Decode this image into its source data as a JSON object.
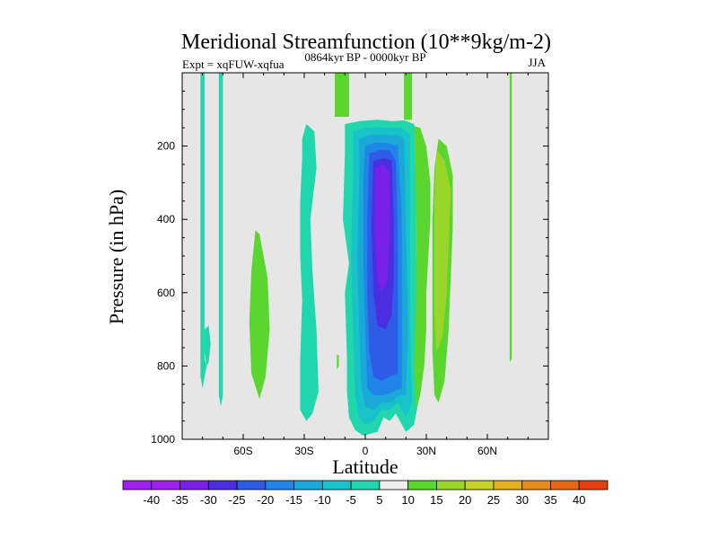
{
  "chart_data": {
    "type": "heatmap",
    "subtype": "filled-contour",
    "title": "Meridional Streamfunction (10**9kg/m-2)",
    "left_string": "Expt = xqFUW-xqfua",
    "center_string": "0864kyr BP - 0000kyr BP",
    "right_string": "JJA",
    "xlabel": "Latitude",
    "ylabel": "Pressure (in hPa)",
    "xlim": [
      -90,
      90
    ],
    "ylim": [
      1000,
      0
    ],
    "xticks": [
      -60,
      -30,
      0,
      30,
      60
    ],
    "xtick_labels": [
      "60S",
      "30S",
      "0",
      "30N",
      "60N"
    ],
    "yticks": [
      200,
      400,
      600,
      800,
      1000
    ],
    "ytick_labels": [
      "200",
      "400",
      "600",
      "800",
      "1000"
    ],
    "missing_color": "#e6e6e6",
    "colorbar": {
      "levels": [
        -40,
        -35,
        -30,
        -25,
        -20,
        -15,
        -10,
        -5,
        5,
        10,
        15,
        20,
        25,
        30,
        35,
        40
      ],
      "labels": [
        "-40",
        "-35",
        "-30",
        "-25",
        "-20",
        "-15",
        "-10",
        "-5",
        "5",
        "10",
        "15",
        "20",
        "25",
        "30",
        "35",
        "40"
      ],
      "colors": [
        "#a020f0",
        "#7b20e8",
        "#4a2ee0",
        "#2f5ce6",
        "#1f86e8",
        "#1aa8d8",
        "#17c3c8",
        "#1fd6ad",
        "#eeeeee",
        "#5ad62e",
        "#9ad62a",
        "#c8d32a",
        "#e0b020",
        "#e68a1a",
        "#e66618",
        "#e64012"
      ]
    },
    "regions": [
      {
        "name": "sh-polar-strip-a",
        "value": -7.5,
        "points": [
          [
            -81,
            0
          ],
          [
            -79,
            0
          ],
          [
            -79,
            780
          ],
          [
            -78,
            800
          ],
          [
            -79,
            830
          ],
          [
            -80,
            860
          ],
          [
            -81,
            830
          ]
        ]
      },
      {
        "name": "sh-polar-strip-a-lobe",
        "value": -7.5,
        "points": [
          [
            -79,
            700
          ],
          [
            -77,
            690
          ],
          [
            -76,
            740
          ],
          [
            -77,
            790
          ],
          [
            -78,
            800
          ],
          [
            -79,
            760
          ]
        ]
      },
      {
        "name": "sh-polar-strip-b",
        "value": -7.5,
        "points": [
          [
            -72,
            0
          ],
          [
            -70,
            0
          ],
          [
            -70,
            880
          ],
          [
            -71,
            910
          ],
          [
            -72,
            880
          ]
        ]
      },
      {
        "name": "sh-midlat-positive",
        "value": 7.5,
        "points": [
          [
            -54,
            430
          ],
          [
            -52,
            440
          ],
          [
            -48,
            560
          ],
          [
            -47,
            700
          ],
          [
            -49,
            830
          ],
          [
            -52,
            890
          ],
          [
            -56,
            820
          ],
          [
            -57,
            680
          ],
          [
            -56,
            540
          ]
        ]
      },
      {
        "name": "sh-subtropic-negative",
        "value": -7.5,
        "points": [
          [
            -29,
            140
          ],
          [
            -25,
            160
          ],
          [
            -24,
            260
          ],
          [
            -27,
            400
          ],
          [
            -26,
            540
          ],
          [
            -24,
            700
          ],
          [
            -23,
            870
          ],
          [
            -26,
            930
          ],
          [
            -29,
            950
          ],
          [
            -32,
            920
          ],
          [
            -32,
            780
          ],
          [
            -31,
            620
          ],
          [
            -32,
            500
          ],
          [
            -32,
            350
          ],
          [
            -31,
            230
          ],
          [
            -31,
            180
          ]
        ]
      },
      {
        "name": "tropic-positive-tiny",
        "value": 7.5,
        "points": [
          [
            -14,
            770
          ],
          [
            -13,
            770
          ],
          [
            -13,
            800
          ],
          [
            -14,
            810
          ]
        ]
      },
      {
        "name": "tropic-positive-top",
        "value": 7.5,
        "points": [
          [
            -15,
            0
          ],
          [
            -8,
            0
          ],
          [
            -8,
            120
          ],
          [
            -15,
            120
          ]
        ]
      },
      {
        "name": "hadley-cell-outer",
        "value": -7.5,
        "points": [
          [
            -10,
            140
          ],
          [
            -3,
            132
          ],
          [
            6,
            128
          ],
          [
            13,
            132
          ],
          [
            19,
            130
          ],
          [
            24,
            140
          ],
          [
            25,
            300
          ],
          [
            25,
            500
          ],
          [
            26,
            700
          ],
          [
            26,
            900
          ],
          [
            24,
            960
          ],
          [
            20,
            980
          ],
          [
            15,
            930
          ],
          [
            12,
            950
          ],
          [
            9,
            940
          ],
          [
            6,
            980
          ],
          [
            -1,
            990
          ],
          [
            -5,
            975
          ],
          [
            -8,
            940
          ],
          [
            -9,
            870
          ],
          [
            -9,
            780
          ],
          [
            -10,
            600
          ],
          [
            -8,
            520
          ],
          [
            -11,
            400
          ],
          [
            -10,
            220
          ]
        ]
      },
      {
        "name": "hadley-cell-12",
        "value": -12.5,
        "points": [
          [
            -6,
            160
          ],
          [
            -1,
            150
          ],
          [
            6,
            148
          ],
          [
            12,
            150
          ],
          [
            18,
            150
          ],
          [
            22,
            170
          ],
          [
            22,
            400
          ],
          [
            22,
            700
          ],
          [
            23,
            900
          ],
          [
            20,
            940
          ],
          [
            16,
            900
          ],
          [
            12,
            920
          ],
          [
            8,
            920
          ],
          [
            4,
            950
          ],
          [
            0,
            960
          ],
          [
            -3,
            940
          ],
          [
            -5,
            880
          ],
          [
            -6,
            700
          ],
          [
            -7,
            500
          ],
          [
            -6,
            300
          ]
        ]
      },
      {
        "name": "hadley-cell-17",
        "value": -17.5,
        "points": [
          [
            -3,
            180
          ],
          [
            2,
            170
          ],
          [
            8,
            168
          ],
          [
            14,
            170
          ],
          [
            19,
            178
          ],
          [
            20,
            400
          ],
          [
            21,
            700
          ],
          [
            20,
            880
          ],
          [
            17,
            880
          ],
          [
            12,
            900
          ],
          [
            8,
            900
          ],
          [
            4,
            920
          ],
          [
            0,
            910
          ],
          [
            -2,
            860
          ],
          [
            -3,
            700
          ],
          [
            -4,
            500
          ],
          [
            -3,
            300
          ]
        ]
      },
      {
        "name": "hadley-cell-22",
        "value": -22.5,
        "points": [
          [
            0,
            200
          ],
          [
            5,
            190
          ],
          [
            11,
            192
          ],
          [
            16,
            200
          ],
          [
            18,
            400
          ],
          [
            18,
            650
          ],
          [
            18,
            860
          ],
          [
            14,
            870
          ],
          [
            9,
            880
          ],
          [
            4,
            880
          ],
          [
            1,
            860
          ],
          [
            0,
            700
          ],
          [
            -1,
            500
          ],
          [
            -1,
            300
          ]
        ]
      },
      {
        "name": "hadley-cell-27",
        "value": -27.5,
        "points": [
          [
            2,
            220
          ],
          [
            7,
            210
          ],
          [
            12,
            212
          ],
          [
            15,
            240
          ],
          [
            16,
            450
          ],
          [
            16,
            700
          ],
          [
            16,
            820
          ],
          [
            12,
            830
          ],
          [
            8,
            840
          ],
          [
            4,
            830
          ],
          [
            2,
            760
          ],
          [
            1,
            600
          ],
          [
            1,
            400
          ]
        ]
      },
      {
        "name": "hadley-cell-32",
        "value": -32.5,
        "points": [
          [
            4,
            240
          ],
          [
            9,
            232
          ],
          [
            13,
            240
          ],
          [
            14,
            400
          ],
          [
            14,
            560
          ],
          [
            13,
            660
          ],
          [
            10,
            700
          ],
          [
            6,
            690
          ],
          [
            4,
            600
          ],
          [
            3,
            420
          ]
        ]
      },
      {
        "name": "hadley-cell-37",
        "value": -37.5,
        "points": [
          [
            5,
            260
          ],
          [
            9,
            250
          ],
          [
            12,
            270
          ],
          [
            12,
            420
          ],
          [
            11,
            560
          ],
          [
            8,
            600
          ],
          [
            6,
            560
          ],
          [
            5,
            440
          ]
        ]
      },
      {
        "name": "ascending-branch-positive",
        "value": 7.5,
        "points": [
          [
            24,
            145
          ],
          [
            27,
            150
          ],
          [
            30,
            200
          ],
          [
            32,
            300
          ],
          [
            32,
            400
          ],
          [
            31,
            500
          ],
          [
            30,
            600
          ],
          [
            30,
            700
          ],
          [
            29,
            800
          ],
          [
            27,
            880
          ],
          [
            25,
            920
          ],
          [
            24,
            800
          ],
          [
            25,
            600
          ],
          [
            25,
            400
          ]
        ]
      },
      {
        "name": "nh-positive-lobe-outer",
        "value": 7.5,
        "points": [
          [
            36,
            180
          ],
          [
            40,
            200
          ],
          [
            43,
            280
          ],
          [
            43,
            420
          ],
          [
            42,
            560
          ],
          [
            41,
            700
          ],
          [
            39,
            840
          ],
          [
            36,
            900
          ],
          [
            34,
            880
          ],
          [
            33,
            760
          ],
          [
            33,
            560
          ],
          [
            33,
            400
          ],
          [
            34,
            260
          ]
        ]
      },
      {
        "name": "nh-positive-lobe-inner",
        "value": 12.5,
        "points": [
          [
            35,
            210
          ],
          [
            39,
            240
          ],
          [
            42,
            320
          ],
          [
            41,
            470
          ],
          [
            40,
            600
          ],
          [
            38,
            720
          ],
          [
            35,
            760
          ],
          [
            34,
            660
          ],
          [
            34,
            500
          ],
          [
            34,
            340
          ]
        ]
      },
      {
        "name": "nh-positive-top-strip",
        "value": 7.5,
        "points": [
          [
            19,
            0
          ],
          [
            23,
            0
          ],
          [
            23,
            128
          ],
          [
            19,
            128
          ]
        ]
      },
      {
        "name": "nh-polar-strip",
        "value": 7.5,
        "points": [
          [
            71,
            0
          ],
          [
            72,
            0
          ],
          [
            72,
            780
          ],
          [
            71,
            790
          ]
        ]
      }
    ]
  }
}
